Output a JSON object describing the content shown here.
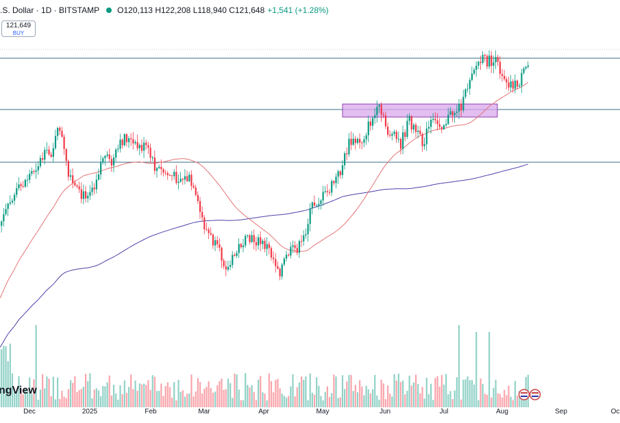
{
  "legend": {
    "symbol": ".S. Dollar · 1D · BITSTAMP",
    "open": "O120,113",
    "high": "H122,208",
    "low": "L118,940",
    "close": "C121,648",
    "change": "+1,541 (+1.28%)"
  },
  "price_box": {
    "value": "121,649",
    "action": "BUY"
  },
  "watermark": "ngView",
  "colors": {
    "up": "#089981",
    "down": "#f23645",
    "ma50": "#e57373",
    "ma200": "#4a3fa8",
    "hline": "#3a6a86",
    "zone_fill": "#d9a8ec",
    "zone_stroke": "#8e3fb0"
  },
  "chart_data": {
    "type": "candlestick",
    "x_ticks": [
      "Dec",
      "2025",
      "Feb",
      "Mar",
      "Apr",
      "May",
      "Jun",
      "Jul",
      "Aug",
      "Sep",
      "Oc"
    ],
    "series": [
      {
        "name": "price",
        "kind": "candlestick"
      },
      {
        "name": "moving-average-50",
        "kind": "line"
      },
      {
        "name": "moving-average-200",
        "kind": "line"
      },
      {
        "name": "volume",
        "kind": "bar"
      }
    ],
    "horizontal_levels": 3,
    "zones": 1
  }
}
